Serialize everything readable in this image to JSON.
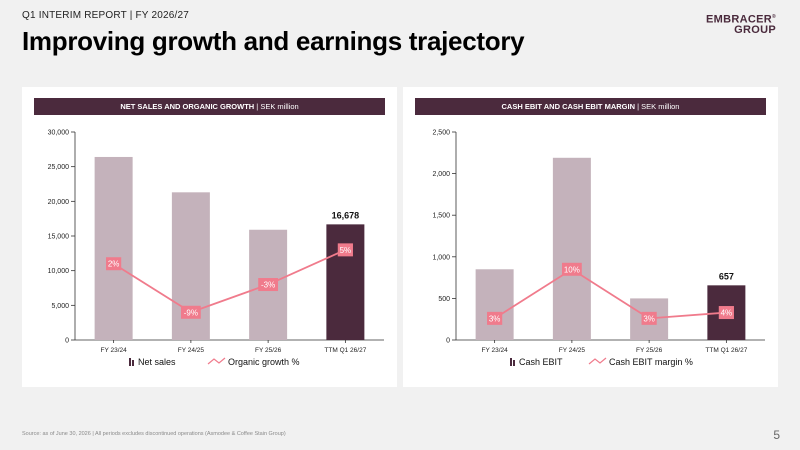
{
  "header": {
    "report": "Q1 INTERIM REPORT | FY 2026/27",
    "title": "Improving growth and earnings trajectory",
    "logo_line1": "EMBRACER",
    "logo_line2": "GROUP",
    "logo_mark": "®"
  },
  "footer": {
    "source": "Source: as of June 30, 2026 | All periods excludes discontinued operations (Asmodee & Coffee Stain Group)",
    "page_number": "5"
  },
  "colors": {
    "bar_light": "#c4b2bb",
    "bar_dark": "#4b2a3d",
    "line": "#f07b8c",
    "header_bg": "#4b2a3d"
  },
  "chart_data": [
    {
      "type": "bar",
      "header_main": "NET SALES AND ORGANIC GROWTH",
      "header_unit": " | SEK million",
      "categories": [
        "FY 23/24",
        "FY 24/25",
        "FY 25/26",
        "TTM Q1 26/27"
      ],
      "ylim": [
        0,
        30000
      ],
      "yticks": [
        0,
        5000,
        10000,
        15000,
        20000,
        25000,
        30000
      ],
      "ytick_labels": [
        "0",
        "5,000",
        "10,000",
        "15,000",
        "20,000",
        "25,000",
        "30,000"
      ],
      "series": [
        {
          "name": "Net sales",
          "type": "bar",
          "values": [
            26400,
            21300,
            15900,
            16678
          ]
        },
        {
          "name": "Organic growth %",
          "type": "line",
          "values": [
            11000,
            4000,
            8000,
            13000
          ],
          "labels": [
            "2%",
            "-9%",
            "-3%",
            "5%"
          ]
        }
      ],
      "bar_data_label": "16,678",
      "highlight_index": 3,
      "grid": false,
      "legend": "bottom"
    },
    {
      "type": "bar",
      "header_main": "CASH EBIT AND CASH EBIT MARGIN",
      "header_unit": " | SEK million",
      "categories": [
        "FY 23/24",
        "FY 24/25",
        "FY 25/26",
        "TTM Q1 26/27"
      ],
      "ylim": [
        0,
        2500
      ],
      "yticks": [
        0,
        500,
        1000,
        1500,
        2000,
        2500
      ],
      "ytick_labels": [
        "0",
        "500",
        "1,000",
        "1,500",
        "2,000",
        "2,500"
      ],
      "series": [
        {
          "name": "Cash EBIT",
          "type": "bar",
          "values": [
            850,
            2190,
            500,
            657
          ]
        },
        {
          "name": "Cash EBIT margin %",
          "type": "line",
          "values": [
            260,
            850,
            260,
            330
          ],
          "labels": [
            "3%",
            "10%",
            "3%",
            "4%"
          ]
        }
      ],
      "bar_data_label": "657",
      "highlight_index": 3,
      "grid": false,
      "legend": "bottom"
    }
  ]
}
